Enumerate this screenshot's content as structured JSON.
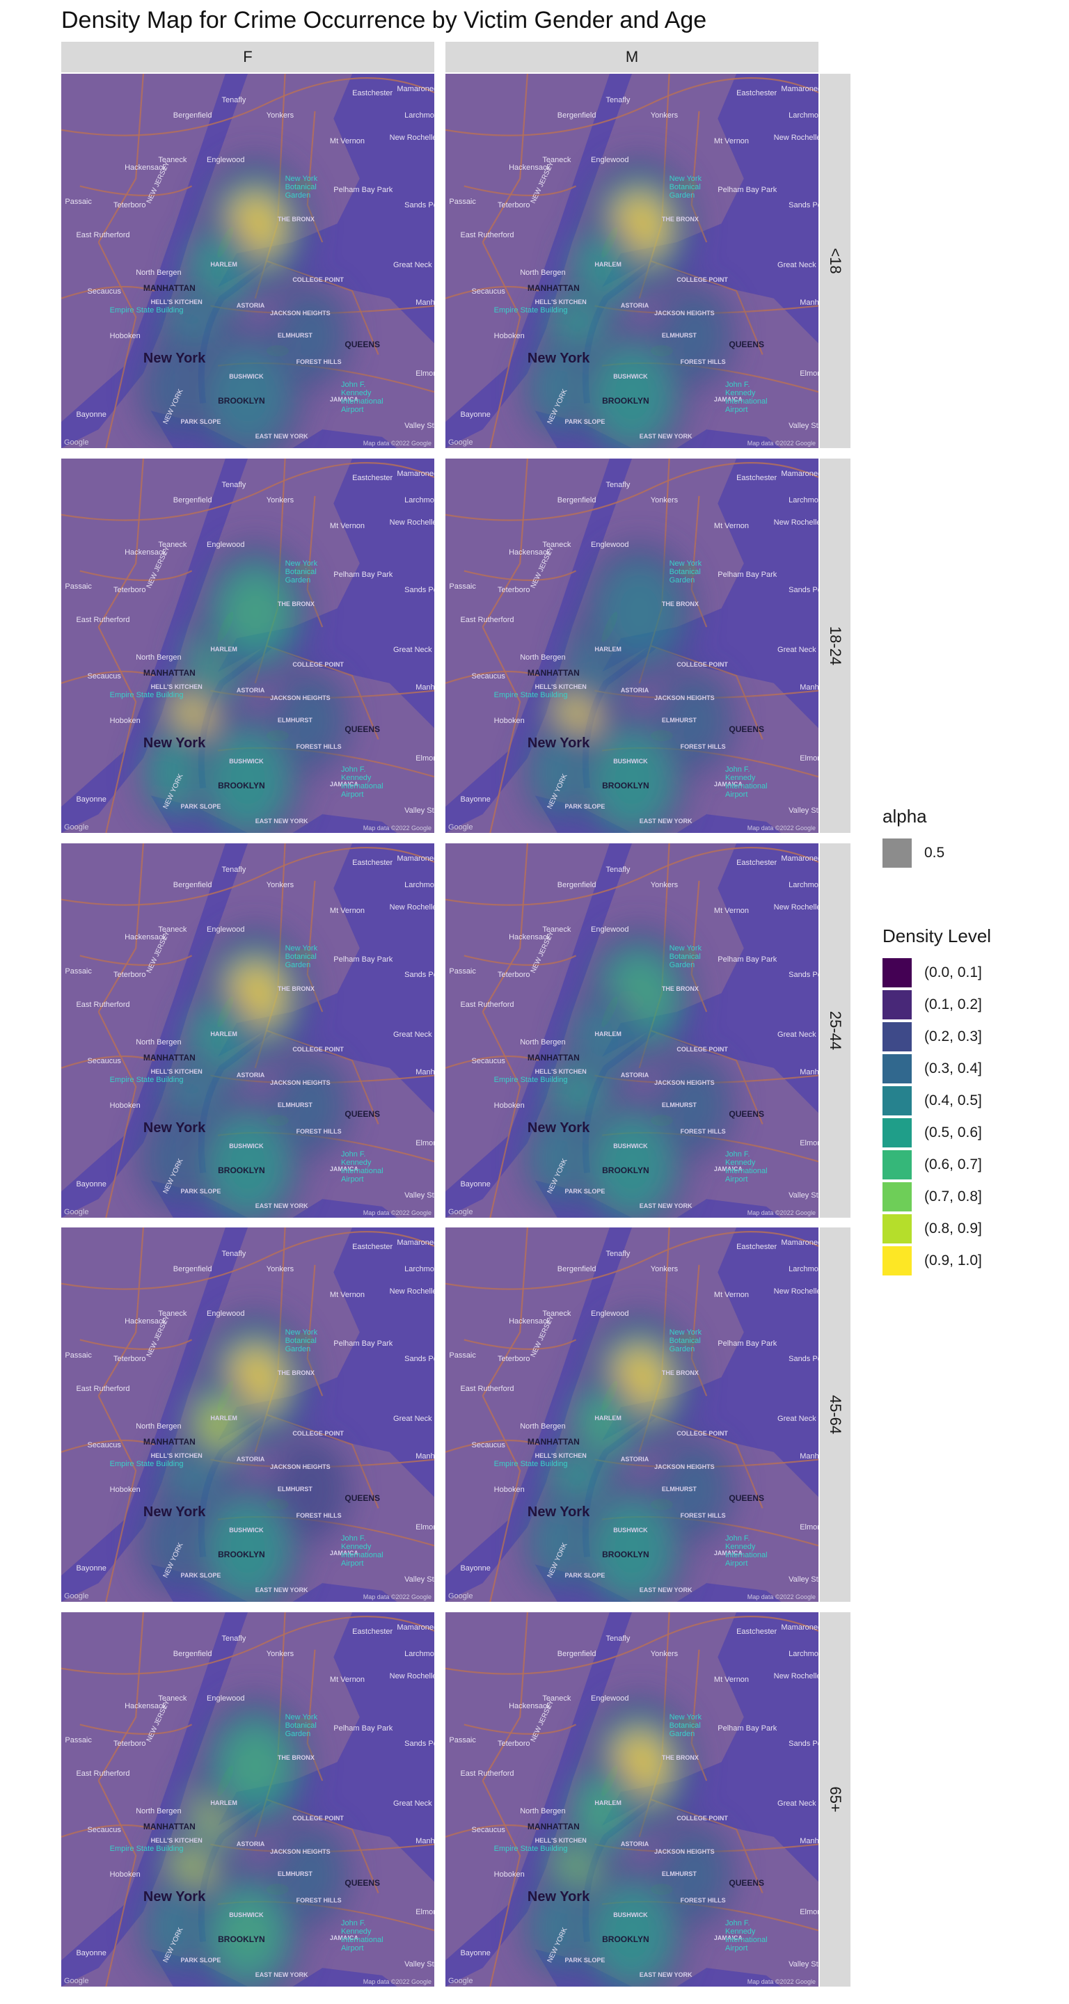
{
  "title": "Density Map for Crime Occurrence by Victim Gender and Age",
  "chart_data": {
    "type": "heatmap",
    "title": "Density Map for Crime Occurrence by Victim Gender and Age",
    "columns": [
      "F",
      "M"
    ],
    "rows": [
      "<18",
      "18-24",
      "25-44",
      "45-64",
      "65+"
    ],
    "basemap_labels": {
      "city": "New York",
      "boroughs": [
        "MANHATTAN",
        "BROOKLYN",
        "QUEENS"
      ],
      "places": [
        "Yonkers",
        "Mt Vernon",
        "New Rochelle",
        "Eastchester",
        "Larchmont",
        "Mamaroneck",
        "Bergenfield",
        "Tenafly",
        "Teaneck",
        "Englewood",
        "Hackensack",
        "Teterboro",
        "East Rutherford",
        "North Bergen",
        "Secaucus",
        "Hoboken",
        "Bayonne",
        "Passaic",
        "Pelham Bay Park",
        "Sands Point",
        "Great Neck",
        "Valley Stream",
        "Elmont",
        "Manhasset",
        "THE BRONX",
        "HARLEM",
        "ASTORIA",
        "JACKSON HEIGHTS",
        "JAMAICA",
        "FOREST HILLS",
        "PARK SLOPE",
        "EAST NEW YORK",
        "ELMHURST",
        "COLLEGE POINT",
        "HELL'S KITCHEN",
        "BUSHWICK"
      ],
      "landmarks": [
        "New York Botanical Garden",
        "Empire State Building",
        "John F. Kennedy International Airport"
      ],
      "water": [
        "NEW JERSEY",
        "NEW YORK"
      ],
      "attribution": "Map data ©2022 Google",
      "logo": "Google"
    },
    "legend": {
      "alpha_title": "alpha",
      "alpha_value": "0.5",
      "alpha_color": "#8c8c8c",
      "density_title": "Density Level",
      "levels": [
        {
          "label": "(0.0, 0.1]",
          "color": "#440154"
        },
        {
          "label": "(0.1, 0.2]",
          "color": "#482878"
        },
        {
          "label": "(0.2, 0.3]",
          "color": "#3e4a89"
        },
        {
          "label": "(0.3, 0.4]",
          "color": "#31688e"
        },
        {
          "label": "(0.4, 0.5]",
          "color": "#26828e"
        },
        {
          "label": "(0.5, 0.6]",
          "color": "#1f9e89"
        },
        {
          "label": "(0.6, 0.7]",
          "color": "#35b779"
        },
        {
          "label": "(0.7, 0.8]",
          "color": "#6ece58"
        },
        {
          "label": "(0.8, 0.9]",
          "color": "#b5de2b"
        },
        {
          "label": "(0.9, 1.0]",
          "color": "#fde725"
        }
      ]
    },
    "hotspots": {
      "F|<18": [
        [
          "bronx",
          0.98
        ],
        [
          "harlem",
          0.55
        ],
        [
          "midtown",
          0.42
        ],
        [
          "lower_manhattan",
          0.4
        ],
        [
          "brooklyn",
          0.5
        ],
        [
          "queens",
          0.35
        ]
      ],
      "M|<18": [
        [
          "bronx",
          1.0
        ],
        [
          "harlem",
          0.6
        ],
        [
          "midtown",
          0.55
        ],
        [
          "lower_manhattan",
          0.45
        ],
        [
          "brooklyn",
          0.55
        ],
        [
          "queens",
          0.4
        ]
      ],
      "F|18-24": [
        [
          "midtown",
          0.98
        ],
        [
          "harlem",
          0.65
        ],
        [
          "bronx",
          0.7
        ],
        [
          "lower_manhattan",
          0.55
        ],
        [
          "brooklyn",
          0.55
        ],
        [
          "queens",
          0.35
        ]
      ],
      "M|18-24": [
        [
          "midtown",
          1.0
        ],
        [
          "harlem",
          0.5
        ],
        [
          "bronx",
          0.5
        ],
        [
          "lower_manhattan",
          0.5
        ],
        [
          "brooklyn",
          0.6
        ],
        [
          "queens",
          0.4
        ]
      ],
      "F|25-44": [
        [
          "bronx",
          0.95
        ],
        [
          "harlem",
          0.6
        ],
        [
          "midtown",
          0.45
        ],
        [
          "lower_manhattan",
          0.4
        ],
        [
          "brooklyn",
          0.6
        ],
        [
          "queens",
          0.35
        ]
      ],
      "M|25-44": [
        [
          "bronx",
          0.65
        ],
        [
          "harlem",
          0.5
        ],
        [
          "midtown",
          0.6
        ],
        [
          "lower_manhattan",
          0.45
        ],
        [
          "brooklyn",
          0.55
        ],
        [
          "queens",
          0.35
        ]
      ],
      "F|45-64": [
        [
          "bronx",
          1.0
        ],
        [
          "harlem",
          0.85
        ],
        [
          "midtown",
          0.45
        ],
        [
          "lower_manhattan",
          0.4
        ],
        [
          "brooklyn",
          0.6
        ],
        [
          "queens",
          0.3
        ]
      ],
      "M|45-64": [
        [
          "bronx",
          0.95
        ],
        [
          "harlem",
          0.7
        ],
        [
          "midtown",
          0.6
        ],
        [
          "lower_manhattan",
          0.45
        ],
        [
          "brooklyn",
          0.55
        ],
        [
          "queens",
          0.35
        ]
      ],
      "F|65+": [
        [
          "midtown",
          0.9
        ],
        [
          "harlem",
          0.85
        ],
        [
          "bronx",
          0.7
        ],
        [
          "lower_manhattan",
          0.5
        ],
        [
          "brooklyn",
          0.7
        ],
        [
          "queens",
          0.35
        ]
      ],
      "M|65+": [
        [
          "bronx",
          0.98
        ],
        [
          "midtown",
          0.75
        ],
        [
          "harlem",
          0.65
        ],
        [
          "lower_manhattan",
          0.5
        ],
        [
          "brooklyn",
          0.6
        ],
        [
          "queens",
          0.35
        ]
      ]
    }
  }
}
